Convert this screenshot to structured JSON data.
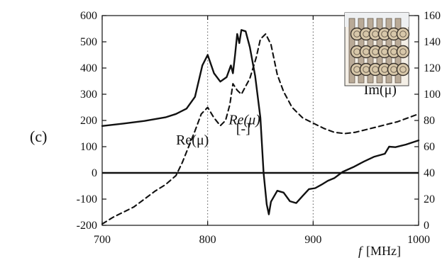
{
  "figure": {
    "panel_label": "(c)",
    "inset_icon": "metamaterial-lattice-image"
  },
  "chart_data": {
    "type": "line",
    "title": "",
    "xlabel": "[MHz]",
    "xlabel_symbol": "f",
    "ylabel": "Re(μ)",
    "ylabel_units": "[-]",
    "xlim": [
      700,
      1000
    ],
    "ylim_left": [
      -200,
      600
    ],
    "ylim_right": [
      0,
      160
    ],
    "x_ticks": [
      700,
      800,
      900,
      1000
    ],
    "y_ticks_left": [
      -200,
      -100,
      0,
      100,
      200,
      300,
      400,
      500,
      600
    ],
    "y_ticks_right": [
      0,
      20,
      40,
      60,
      80,
      100,
      120,
      140,
      160
    ],
    "x_tick_labels": [
      "700",
      "800",
      "900",
      "1000"
    ],
    "y_tick_labels_left": [
      "-200",
      "-100",
      "0",
      "100",
      "200",
      "300",
      "400",
      "500",
      "600"
    ],
    "y_tick_labels_right": [
      "0",
      "20",
      "40",
      "60",
      "80",
      "100",
      "120",
      "140",
      "160"
    ],
    "grid": "vertical dotted lines at x ticks",
    "zero_reference": 0,
    "series": [
      {
        "name": "Re(μ)",
        "axis": "left",
        "style": "solid",
        "points": [
          [
            700,
            179
          ],
          [
            720,
            188
          ],
          [
            740,
            198
          ],
          [
            760,
            212
          ],
          [
            770,
            225
          ],
          [
            780,
            245
          ],
          [
            788,
            290
          ],
          [
            795,
            410
          ],
          [
            800,
            450
          ],
          [
            806,
            380
          ],
          [
            812,
            348
          ],
          [
            818,
            365
          ],
          [
            822,
            410
          ],
          [
            824,
            380
          ],
          [
            826,
            450
          ],
          [
            828,
            530
          ],
          [
            830,
            495
          ],
          [
            832,
            545
          ],
          [
            836,
            540
          ],
          [
            840,
            480
          ],
          [
            845,
            370
          ],
          [
            850,
            210
          ],
          [
            853,
            0
          ],
          [
            856,
            -120
          ],
          [
            858,
            -158
          ],
          [
            860,
            -110
          ],
          [
            866,
            -68
          ],
          [
            872,
            -75
          ],
          [
            878,
            -108
          ],
          [
            884,
            -115
          ],
          [
            890,
            -88
          ],
          [
            896,
            -62
          ],
          [
            902,
            -58
          ],
          [
            908,
            -45
          ],
          [
            914,
            -30
          ],
          [
            920,
            -20
          ],
          [
            928,
            4
          ],
          [
            938,
            22
          ],
          [
            948,
            43
          ],
          [
            958,
            62
          ],
          [
            968,
            73
          ],
          [
            972,
            100
          ],
          [
            978,
            98
          ],
          [
            988,
            108
          ],
          [
            1000,
            124
          ]
        ]
      },
      {
        "name": "Im(μ)",
        "axis": "right",
        "style": "dashed",
        "points": [
          [
            700,
            1
          ],
          [
            710,
            6
          ],
          [
            720,
            10
          ],
          [
            730,
            14
          ],
          [
            740,
            20
          ],
          [
            750,
            26
          ],
          [
            760,
            31
          ],
          [
            770,
            38
          ],
          [
            776,
            48
          ],
          [
            782,
            60
          ],
          [
            788,
            72
          ],
          [
            794,
            85
          ],
          [
            800,
            90
          ],
          [
            806,
            82
          ],
          [
            812,
            76
          ],
          [
            817,
            80
          ],
          [
            821,
            92
          ],
          [
            824,
            108
          ],
          [
            828,
            103
          ],
          [
            832,
            100
          ],
          [
            840,
            112
          ],
          [
            846,
            128
          ],
          [
            850,
            142
          ],
          [
            855,
            146
          ],
          [
            860,
            138
          ],
          [
            866,
            115
          ],
          [
            872,
            102
          ],
          [
            880,
            90
          ],
          [
            890,
            82
          ],
          [
            900,
            78
          ],
          [
            910,
            74
          ],
          [
            920,
            71
          ],
          [
            930,
            70
          ],
          [
            940,
            71
          ],
          [
            950,
            73
          ],
          [
            960,
            75
          ],
          [
            970,
            77
          ],
          [
            980,
            79
          ],
          [
            990,
            82
          ],
          [
            1000,
            85
          ]
        ]
      }
    ],
    "annotations": [
      {
        "text": "Re(μ)",
        "x": 820,
        "y": 185,
        "axis": "left",
        "style": "italic"
      },
      {
        "text": "[-]",
        "x": 827,
        "y": 152,
        "axis": "left",
        "style": "normal"
      },
      {
        "text": "Re(μ)",
        "x": 770,
        "y": 108,
        "axis": "left",
        "style": "normal"
      },
      {
        "text": "Im(μ)",
        "x": 948,
        "y": 100,
        "axis": "right",
        "style": "normal"
      }
    ]
  }
}
